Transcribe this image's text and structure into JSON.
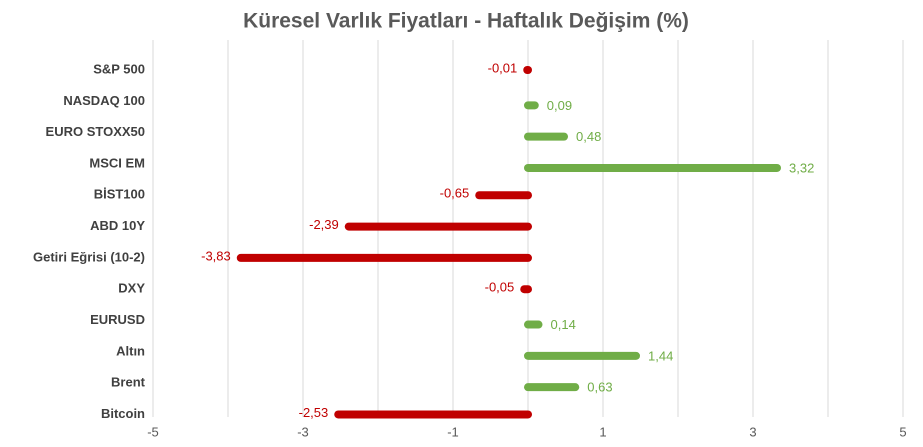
{
  "chart_data": {
    "type": "bar",
    "orientation": "horizontal",
    "title": "Küresel Varlık Fiyatları - Haftalık Değişim (%)",
    "categories": [
      "S&P 500",
      "NASDAQ 100",
      "EURO STOXX50",
      "MSCI EM",
      "BİST100",
      "ABD 10Y",
      "Getiri Eğrisi (10-2)",
      "DXY",
      "EURUSD",
      "Altın",
      "Brent",
      "Bitcoin"
    ],
    "values": [
      -0.01,
      0.09,
      0.48,
      3.32,
      -0.65,
      -2.39,
      -3.83,
      -0.05,
      0.14,
      1.44,
      0.63,
      -2.53
    ],
    "value_labels": [
      "-0,01",
      "0,09",
      "0,48",
      "3,32",
      "-0,65",
      "-2,39",
      "-3,83",
      "-0,05",
      "0,14",
      "1,44",
      "0,63",
      "-2,53"
    ],
    "positive_color": "#70ad47",
    "negative_color": "#c00000",
    "xlim": [
      -5,
      5
    ],
    "xticks": [
      -5,
      {
        "value": -4,
        "label": null
      },
      -3,
      {
        "value": -2,
        "label": null
      },
      -1,
      {
        "value": 0,
        "label": null
      },
      1,
      {
        "value": 2,
        "label": null
      },
      3,
      {
        "value": 4,
        "label": null
      },
      5
    ],
    "grid": true
  }
}
